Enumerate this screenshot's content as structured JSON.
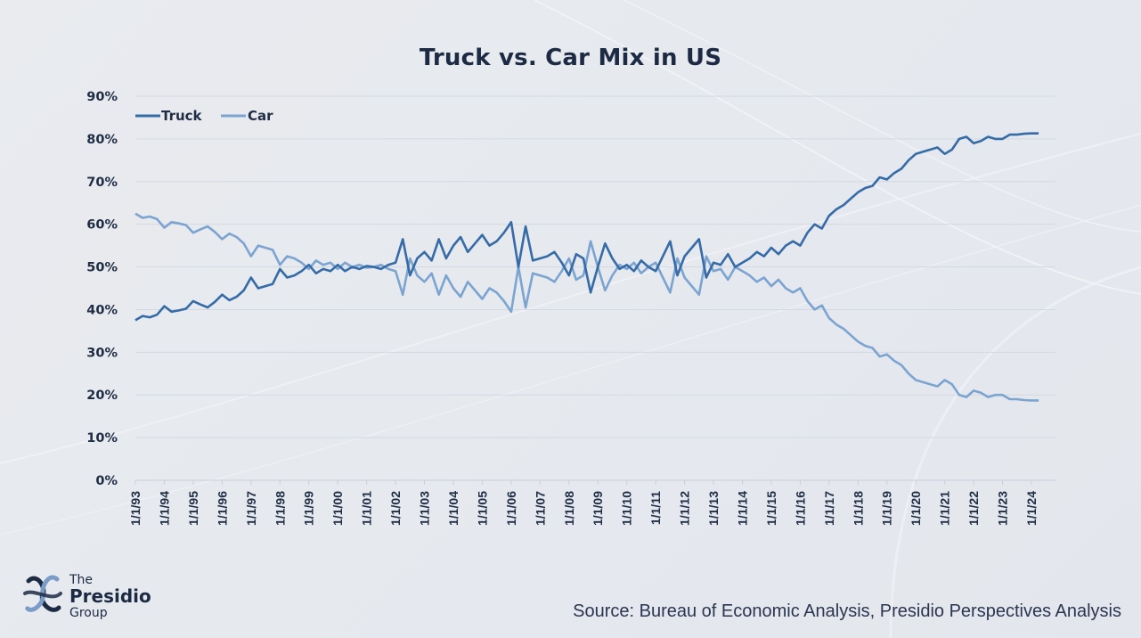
{
  "page": {
    "title": "Truck vs. Car Mix in US",
    "source": "Source: Bureau of Economic Analysis, Presidio Perspectives Analysis",
    "logo": {
      "line1": "The",
      "line2": "Presidio",
      "line3": "Group"
    }
  },
  "colors": {
    "truck": "#356ba6",
    "car": "#7ca4d1",
    "grid": "#d3d9e2",
    "text": "#1f2d45"
  },
  "chart_data": {
    "type": "line",
    "title": "Truck vs. Car Mix in US",
    "xlabel": "",
    "ylabel": "",
    "ylim": [
      0,
      90
    ],
    "yticks": [
      "0%",
      "10%",
      "20%",
      "30%",
      "40%",
      "50%",
      "60%",
      "70%",
      "80%",
      "90%"
    ],
    "xticks": [
      "1/1/93",
      "1/1/94",
      "1/1/95",
      "1/1/96",
      "1/1/97",
      "1/1/98",
      "1/1/99",
      "1/1/00",
      "1/1/01",
      "1/1/02",
      "1/1/03",
      "1/1/04",
      "1/1/05",
      "1/1/06",
      "1/1/07",
      "1/1/08",
      "1/1/09",
      "1/1/10",
      "1/1/11",
      "1/1/12",
      "1/1/13",
      "1/1/14",
      "1/1/15",
      "1/1/16",
      "1/1/17",
      "1/1/18",
      "1/1/19",
      "1/1/20",
      "1/1/21",
      "1/1/22",
      "1/1/23",
      "1/1/24"
    ],
    "grid": true,
    "legend": {
      "position": "top-left",
      "entries": [
        "Truck",
        "Car"
      ]
    },
    "x_start_year": 1993,
    "x_step_years": 0.25,
    "series": [
      {
        "name": "Truck",
        "values": [
          37.5,
          38.5,
          38.2,
          38.8,
          40.8,
          39.5,
          39.8,
          40.2,
          42.0,
          41.2,
          40.5,
          41.8,
          43.5,
          42.2,
          43.0,
          44.5,
          47.5,
          45.0,
          45.5,
          46.0,
          49.5,
          47.5,
          48.0,
          49.0,
          50.5,
          48.5,
          49.5,
          49.0,
          50.5,
          49.0,
          50.0,
          49.5,
          50.2,
          50.0,
          49.5,
          50.5,
          51.0,
          56.5,
          48.0,
          52.0,
          53.5,
          51.5,
          56.5,
          52.0,
          55.0,
          57.0,
          53.5,
          55.5,
          57.5,
          55.0,
          56.0,
          58.0,
          60.5,
          50.0,
          59.5,
          51.5,
          52.0,
          52.5,
          53.5,
          51.0,
          48.0,
          53.0,
          52.0,
          44.0,
          50.0,
          55.5,
          52.0,
          49.5,
          50.5,
          49.0,
          51.5,
          50.0,
          49.0,
          52.5,
          56.0,
          48.0,
          52.5,
          54.5,
          56.5,
          47.5,
          51.0,
          50.5,
          53.0,
          50.0,
          51.0,
          52.0,
          53.5,
          52.5,
          54.5,
          53.0,
          55.0,
          56.0,
          55.0,
          58.0,
          60.0,
          59.0,
          62.0,
          63.5,
          64.5,
          66.0,
          67.5,
          68.5,
          69.0,
          71.0,
          70.5,
          72.0,
          73.0,
          75.0,
          76.5,
          77.0,
          77.5,
          78.0,
          76.5,
          77.5,
          80.0,
          80.5,
          79.0,
          79.5,
          80.5,
          80.0,
          80.0,
          81.0,
          81.0,
          81.2,
          81.3,
          81.3
        ]
      },
      {
        "name": "Car",
        "values": [
          62.5,
          61.5,
          61.8,
          61.2,
          59.2,
          60.5,
          60.2,
          59.8,
          58.0,
          58.8,
          59.5,
          58.2,
          56.5,
          57.8,
          57.0,
          55.5,
          52.5,
          55.0,
          54.5,
          54.0,
          50.5,
          52.5,
          52.0,
          51.0,
          49.5,
          51.5,
          50.5,
          51.0,
          49.5,
          51.0,
          50.0,
          50.5,
          49.8,
          50.0,
          50.5,
          49.5,
          49.0,
          43.5,
          52.0,
          48.0,
          46.5,
          48.5,
          43.5,
          48.0,
          45.0,
          43.0,
          46.5,
          44.5,
          42.5,
          45.0,
          44.0,
          42.0,
          39.5,
          50.0,
          40.5,
          48.5,
          48.0,
          47.5,
          46.5,
          49.0,
          52.0,
          47.0,
          48.0,
          56.0,
          50.0,
          44.5,
          48.0,
          50.5,
          49.5,
          51.0,
          48.5,
          50.0,
          51.0,
          47.5,
          44.0,
          52.0,
          47.5,
          45.5,
          43.5,
          52.5,
          49.0,
          49.5,
          47.0,
          50.0,
          49.0,
          48.0,
          46.5,
          47.5,
          45.5,
          47.0,
          45.0,
          44.0,
          45.0,
          42.0,
          40.0,
          41.0,
          38.0,
          36.5,
          35.5,
          34.0,
          32.5,
          31.5,
          31.0,
          29.0,
          29.5,
          28.0,
          27.0,
          25.0,
          23.5,
          23.0,
          22.5,
          22.0,
          23.5,
          22.5,
          20.0,
          19.5,
          21.0,
          20.5,
          19.5,
          20.0,
          20.0,
          19.0,
          19.0,
          18.8,
          18.7,
          18.7
        ]
      }
    ]
  }
}
